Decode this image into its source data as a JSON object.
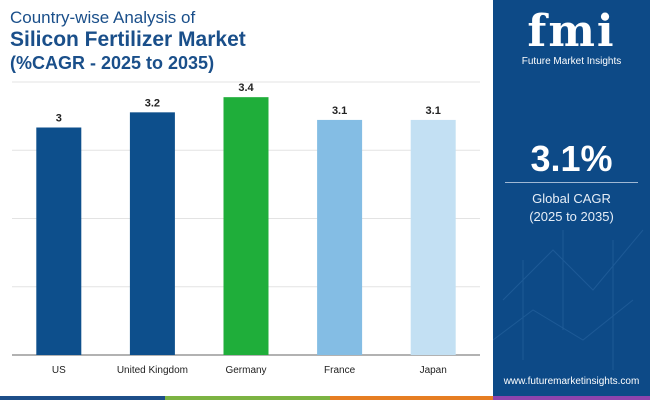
{
  "header": {
    "line1": "Country-wise Analysis of",
    "line2": "Silicon Fertilizer Market",
    "line3": "(%CAGR - 2025 to 2035)"
  },
  "chart_data": {
    "type": "bar",
    "categories": [
      "US",
      "United Kingdom",
      "Germany",
      "France",
      "Japan"
    ],
    "values": [
      3,
      3.2,
      3.4,
      3.1,
      3.1
    ],
    "data_labels": [
      "3",
      "3.2",
      "3.4",
      "3.1",
      "3.1"
    ],
    "bar_colors": [
      "#0d4f8c",
      "#0d4f8c",
      "#1fae3a",
      "#84bde4",
      "#c3e0f3"
    ],
    "ylim": [
      0,
      3.6
    ],
    "grid": true,
    "legend": "none"
  },
  "panel": {
    "logo_text": "fmi",
    "logo_subtitle": "Future Market Insights",
    "big_value": "3.1%",
    "cagr_label_line1": "Global CAGR",
    "cagr_label_line2": "(2025 to 2035)",
    "website": "www.futuremarketinsights.com",
    "background": "#0d4a87"
  },
  "footer_colors": [
    "#1d4e89",
    "#7cb342",
    "#e67e22",
    "#8e44ad"
  ]
}
